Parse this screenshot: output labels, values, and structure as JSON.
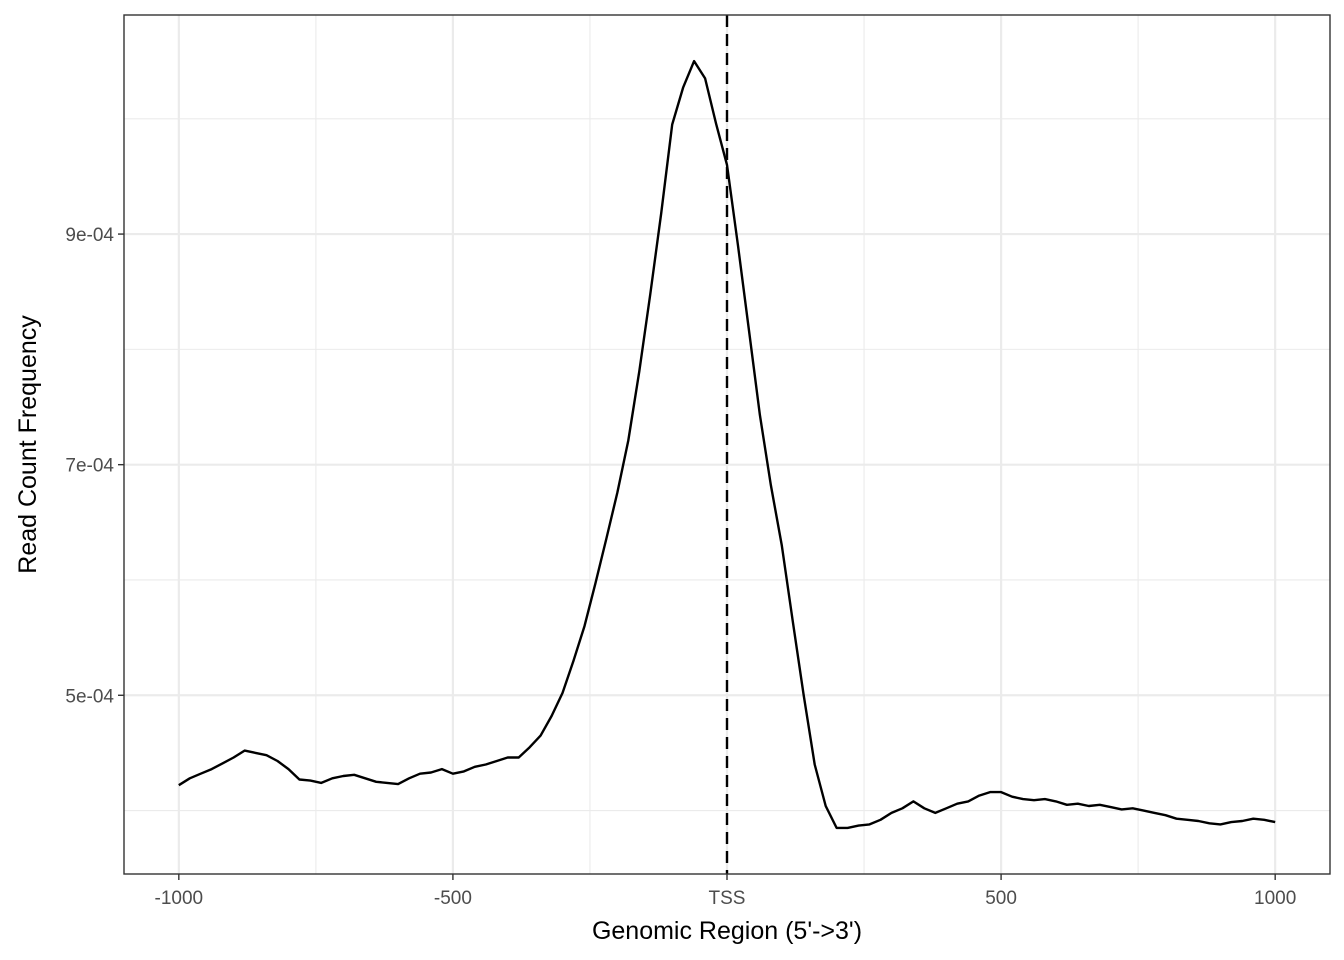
{
  "chart_data": {
    "type": "line",
    "title": "",
    "xlabel": "Genomic Region (5'->3')",
    "ylabel": "Read Count Frequency",
    "xlim": [
      -1100,
      1100
    ],
    "ylim": [
      0.000345,
      0.00109
    ],
    "x_ticks": [
      {
        "value": -1000,
        "label": "-1000"
      },
      {
        "value": -500,
        "label": "-500"
      },
      {
        "value": 0,
        "label": "TSS"
      },
      {
        "value": 500,
        "label": "500"
      },
      {
        "value": 1000,
        "label": "1000"
      }
    ],
    "x_minor_ticks": [
      -750,
      -250,
      250,
      750
    ],
    "y_ticks": [
      {
        "value": 0.0005,
        "label": "5e-04"
      },
      {
        "value": 0.0007,
        "label": "7e-04"
      },
      {
        "value": 0.0009,
        "label": "9e-04"
      }
    ],
    "y_minor_ticks": [
      0.0004,
      0.0006,
      0.0008,
      0.001
    ],
    "reference_line": {
      "x": 0,
      "style": "dashed"
    },
    "grid": true,
    "legend": "none",
    "line_color": "#000000",
    "series": [
      {
        "x": [
          -1000,
          -980,
          -960,
          -940,
          -920,
          -900,
          -880,
          -860,
          -840,
          -820,
          -800,
          -780,
          -760,
          -740,
          -720,
          -700,
          -680,
          -660,
          -640,
          -620,
          -600,
          -580,
          -560,
          -540,
          -520,
          -500,
          -480,
          -460,
          -440,
          -420,
          -400,
          -380,
          -360,
          -340,
          -320,
          -300,
          -280,
          -260,
          -240,
          -220,
          -200,
          -180,
          -160,
          -140,
          -120,
          -100,
          -80,
          -60,
          -40,
          -20,
          0,
          20,
          40,
          60,
          80,
          100,
          120,
          140,
          160,
          180,
          200,
          220,
          240,
          260,
          280,
          300,
          320,
          340,
          360,
          380,
          400,
          420,
          440,
          460,
          480,
          500,
          520,
          540,
          560,
          580,
          600,
          620,
          640,
          660,
          680,
          700,
          720,
          740,
          760,
          780,
          800,
          820,
          840,
          860,
          880,
          900,
          920,
          940,
          960,
          980,
          1000
        ],
        "y": [
          0.000422,
          0.000428,
          0.000432,
          0.000436,
          0.000441,
          0.000446,
          0.000452,
          0.00045,
          0.000448,
          0.000443,
          0.000436,
          0.000427,
          0.000426,
          0.000424,
          0.000428,
          0.00043,
          0.000431,
          0.000428,
          0.000425,
          0.000424,
          0.000423,
          0.000428,
          0.000432,
          0.000433,
          0.000436,
          0.000432,
          0.000434,
          0.000438,
          0.00044,
          0.000443,
          0.000446,
          0.000446,
          0.000455,
          0.000465,
          0.000482,
          0.000502,
          0.00053,
          0.00056,
          0.000597,
          0.000636,
          0.000676,
          0.000721,
          0.000781,
          0.000848,
          0.000918,
          0.000995,
          0.001027,
          0.00105,
          0.001035,
          0.000996,
          0.00096,
          0.00089,
          0.000817,
          0.000743,
          0.000682,
          0.00063,
          0.000564,
          0.0005,
          0.00044,
          0.000404,
          0.000385,
          0.000385,
          0.000387,
          0.000388,
          0.000392,
          0.000398,
          0.000402,
          0.000408,
          0.000402,
          0.000398,
          0.000402,
          0.000406,
          0.000408,
          0.000413,
          0.000416,
          0.000416,
          0.000412,
          0.00041,
          0.000409,
          0.00041,
          0.000408,
          0.000405,
          0.000406,
          0.000404,
          0.000405,
          0.000403,
          0.000401,
          0.000402,
          0.0004,
          0.000398,
          0.000396,
          0.000393,
          0.000392,
          0.000391,
          0.000389,
          0.000388,
          0.00039,
          0.000391,
          0.000393,
          0.000392,
          0.00039
        ]
      }
    ]
  }
}
